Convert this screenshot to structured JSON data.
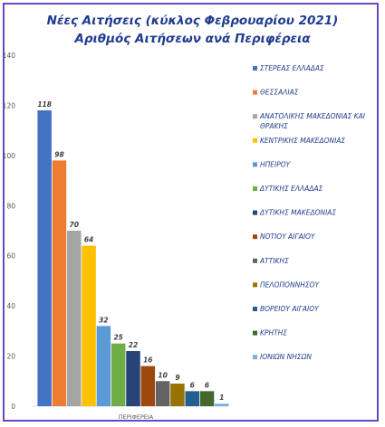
{
  "chart_data": {
    "type": "bar",
    "title": "Νέες Αιτήσεις  (κύκλος Φεβρουαρίου 2021)",
    "subtitle": "Αριθμός Αιτήσεων ανά Περιφέρεια",
    "xlabel": "ΠΕΡΙΦΕΡΕΙΑ",
    "ylabel": "",
    "ylim": [
      0,
      140
    ],
    "yticks": [
      0,
      20,
      40,
      60,
      80,
      100,
      120,
      140
    ],
    "grid": false,
    "legend_position": "right",
    "series": [
      {
        "name": "ΣΤΕΡΕΑΣ ΕΛΛΑΔΑΣ",
        "value": 118,
        "color": "#4472c4"
      },
      {
        "name": "ΘΕΣΣΑΛΙΑΣ",
        "value": 98,
        "color": "#ed7d31"
      },
      {
        "name": "ΑΝΑΤΟΛΙΚΗΣ ΜΑΚΕΔΟΝΙΑΣ ΚΑΙ ΘΡΑΚΗΣ",
        "value": 70,
        "color": "#a5a5a5"
      },
      {
        "name": "ΚΕΝΤΡΙΚΗΣ ΜΑΚΕΔΟΝΙΑΣ",
        "value": 64,
        "color": "#ffc000"
      },
      {
        "name": "ΗΠΕΙΡΟΥ",
        "value": 32,
        "color": "#5b9bd5"
      },
      {
        "name": "ΔΥΤΙΚΗΣ ΕΛΛΑΔΑΣ",
        "value": 25,
        "color": "#70ad47"
      },
      {
        "name": "ΔΥΤΙΚΗΣ ΜΑΚΕΔΟΝΙΑΣ",
        "value": 22,
        "color": "#264478"
      },
      {
        "name": "ΝΟΤΙΟΥ ΑΙΓΑΙΟΥ",
        "value": 16,
        "color": "#9e480e"
      },
      {
        "name": "ΑΤΤΙΚΗΣ",
        "value": 10,
        "color": "#636363"
      },
      {
        "name": "ΠΕΛΟΠΟΝΝΗΣΟΥ",
        "value": 9,
        "color": "#997300"
      },
      {
        "name": "ΒΟΡΕΙΟΥ ΑΙΓΑΙΟΥ",
        "value": 6,
        "color": "#255e91"
      },
      {
        "name": "ΚΡΗΤΗΣ",
        "value": 6,
        "color": "#43682b"
      },
      {
        "name": "ΙΟΝΙΩΝ ΝΗΣΩΝ",
        "value": 1,
        "color": "#7cafdd"
      }
    ]
  }
}
